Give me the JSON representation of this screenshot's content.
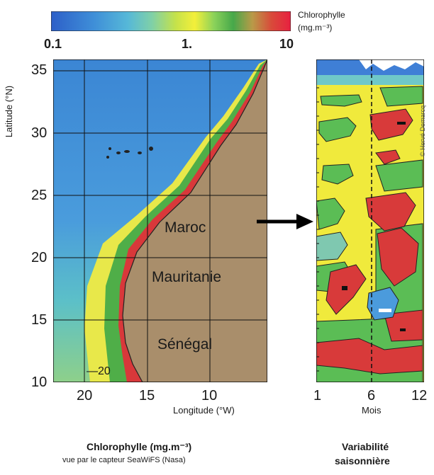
{
  "colorbar": {
    "title_line1": "Chlorophylle",
    "title_line2": "(mg.m⁻³)",
    "ticks": [
      "0.1",
      "1.",
      "10"
    ],
    "colors": [
      "#2d6fcf",
      "#3f8fd8",
      "#56b3d8",
      "#5ec8b8",
      "#b8df4a",
      "#f3ef3a",
      "#8bd25a",
      "#55b548",
      "#3b9a3b",
      "#c99040",
      "#d94a3a",
      "#e0283a"
    ]
  },
  "map": {
    "y_axis_label": "Latitude (°N)",
    "x_axis_label": "Longitude (°W)",
    "lat_ticks": [
      "35",
      "30",
      "25",
      "20",
      "15",
      "10"
    ],
    "lon_ticks": [
      "20",
      "15",
      "10"
    ],
    "countries": [
      "Maroc",
      "Mauritanie",
      "Sénégal"
    ],
    "contour_label": "20",
    "colors": {
      "ocean": "#3f8cd6",
      "land": "#a98e6b",
      "coast_high": "#d9383a",
      "coast_mid": "#55b548",
      "coast_low": "#f0ea3c"
    }
  },
  "hovmoller": {
    "x_axis_label": "Mois",
    "x_ticks": [
      "1",
      "6",
      "12"
    ]
  },
  "captions": {
    "left_title": "Chlorophylle (mg.m⁻³)",
    "left_subtitle": "vue par le capteur SeaWiFS (Nasa)",
    "right_line1": "Variabilité",
    "right_line2": "saisonnière"
  },
  "copyright": "© Hervé Demarcq"
}
